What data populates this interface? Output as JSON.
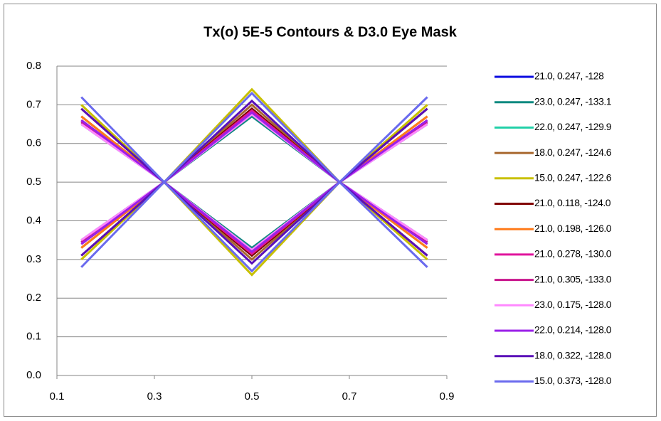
{
  "chart_data": {
    "type": "line",
    "title": "Tx(o) 5E-5 Contours & D3.0 Eye Mask",
    "x": [
      0.15,
      0.32,
      0.5,
      0.68,
      0.86,
      null,
      0.15,
      0.32,
      0.5,
      0.68,
      0.86
    ],
    "series": [
      {
        "name": "21.0, 0.247, -128",
        "color": "#0a0ae0",
        "values": [
          0.66,
          0.5,
          0.31,
          0.5,
          0.66,
          null,
          0.34,
          0.5,
          0.69,
          0.5,
          0.34
        ]
      },
      {
        "name": "23.0, 0.247, -133.1",
        "color": "#0e8a80",
        "values": [
          0.65,
          0.5,
          0.33,
          0.5,
          0.65,
          null,
          0.35,
          0.5,
          0.67,
          0.5,
          0.35
        ]
      },
      {
        "name": "22.0, 0.247, -129.9",
        "color": "#22d0a8",
        "values": [
          0.655,
          0.5,
          0.32,
          0.5,
          0.655,
          null,
          0.345,
          0.5,
          0.68,
          0.5,
          0.345
        ]
      },
      {
        "name": "18.0, 0.247, -124.6",
        "color": "#a8682e",
        "values": [
          0.67,
          0.5,
          0.3,
          0.5,
          0.67,
          null,
          0.33,
          0.5,
          0.7,
          0.5,
          0.33
        ]
      },
      {
        "name": "15.0, 0.247, -122.6",
        "color": "#c8c000",
        "values": [
          0.7,
          0.5,
          0.26,
          0.5,
          0.7,
          null,
          0.3,
          0.5,
          0.74,
          0.5,
          0.3
        ]
      },
      {
        "name": "21.0, 0.118, -124.0",
        "color": "#800000",
        "values": [
          0.69,
          0.5,
          0.31,
          0.5,
          0.69,
          null,
          0.31,
          0.5,
          0.69,
          0.5,
          0.31
        ]
      },
      {
        "name": "21.0, 0.198, -126.0",
        "color": "#ff7a1a",
        "values": [
          0.67,
          0.5,
          0.315,
          0.5,
          0.67,
          null,
          0.33,
          0.5,
          0.685,
          0.5,
          0.33
        ]
      },
      {
        "name": "21.0, 0.278, -130.0",
        "color": "#e0149c",
        "values": [
          0.66,
          0.5,
          0.315,
          0.5,
          0.66,
          null,
          0.34,
          0.5,
          0.685,
          0.5,
          0.34
        ]
      },
      {
        "name": "21.0, 0.305, -133.0",
        "color": "#c8148c",
        "values": [
          0.655,
          0.5,
          0.32,
          0.5,
          0.655,
          null,
          0.345,
          0.5,
          0.68,
          0.5,
          0.345
        ]
      },
      {
        "name": "23.0, 0.175, -128.0",
        "color": "#ff88ff",
        "values": [
          0.65,
          0.5,
          0.325,
          0.5,
          0.65,
          null,
          0.35,
          0.5,
          0.675,
          0.5,
          0.35
        ]
      },
      {
        "name": "22.0, 0.214, -128.0",
        "color": "#9b20e8",
        "values": [
          0.66,
          0.5,
          0.32,
          0.5,
          0.66,
          null,
          0.34,
          0.5,
          0.68,
          0.5,
          0.34
        ]
      },
      {
        "name": "18.0, 0.322, -128.0",
        "color": "#5a10b8",
        "values": [
          0.69,
          0.5,
          0.29,
          0.5,
          0.69,
          null,
          0.31,
          0.5,
          0.71,
          0.5,
          0.31
        ]
      },
      {
        "name": "15.0, 0.373, -128.0",
        "color": "#6a6aee",
        "values": [
          0.72,
          0.5,
          0.27,
          0.5,
          0.72,
          null,
          0.28,
          0.5,
          0.73,
          0.5,
          0.28
        ]
      }
    ],
    "xlim": [
      0.1,
      0.9
    ],
    "xticks": [
      0.1,
      0.3,
      0.5,
      0.7,
      0.9
    ],
    "ylim": [
      0,
      0.8
    ],
    "yticks": [
      {
        "value": 0,
        "label": "0.0"
      },
      0.1,
      0.2,
      0.3,
      0.4,
      0.5,
      0.6,
      0.7,
      0.8
    ],
    "grid": true,
    "legend": "right"
  }
}
